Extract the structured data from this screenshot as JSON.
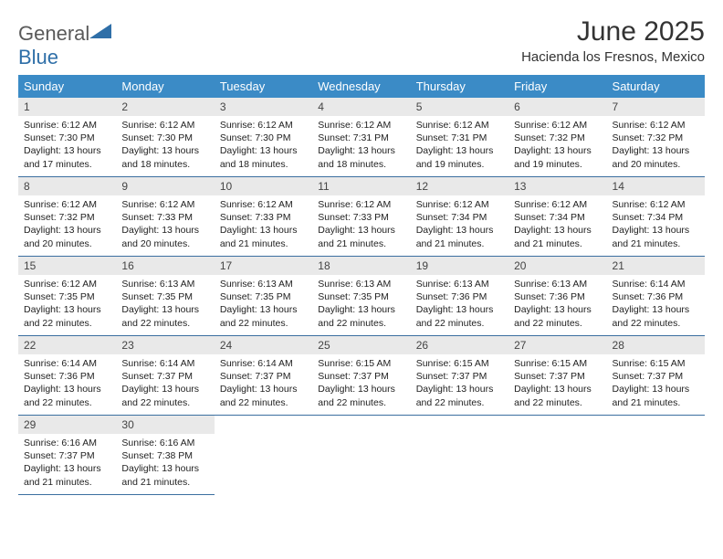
{
  "logo": {
    "word1": "General",
    "word2": "Blue",
    "triangle_color": "#2f6fa8"
  },
  "header": {
    "month_title": "June 2025",
    "location": "Hacienda los Fresnos, Mexico"
  },
  "colors": {
    "header_bg": "#3b8bc6",
    "header_text": "#ffffff",
    "daynum_bg": "#e9e9e9",
    "row_border": "#3b6fa0",
    "body_text": "#222222"
  },
  "day_labels": [
    "Sunday",
    "Monday",
    "Tuesday",
    "Wednesday",
    "Thursday",
    "Friday",
    "Saturday"
  ],
  "weeks": [
    [
      {
        "n": "1",
        "sr": "6:12 AM",
        "ss": "7:30 PM",
        "dl": "13 hours and 17 minutes."
      },
      {
        "n": "2",
        "sr": "6:12 AM",
        "ss": "7:30 PM",
        "dl": "13 hours and 18 minutes."
      },
      {
        "n": "3",
        "sr": "6:12 AM",
        "ss": "7:30 PM",
        "dl": "13 hours and 18 minutes."
      },
      {
        "n": "4",
        "sr": "6:12 AM",
        "ss": "7:31 PM",
        "dl": "13 hours and 18 minutes."
      },
      {
        "n": "5",
        "sr": "6:12 AM",
        "ss": "7:31 PM",
        "dl": "13 hours and 19 minutes."
      },
      {
        "n": "6",
        "sr": "6:12 AM",
        "ss": "7:32 PM",
        "dl": "13 hours and 19 minutes."
      },
      {
        "n": "7",
        "sr": "6:12 AM",
        "ss": "7:32 PM",
        "dl": "13 hours and 20 minutes."
      }
    ],
    [
      {
        "n": "8",
        "sr": "6:12 AM",
        "ss": "7:32 PM",
        "dl": "13 hours and 20 minutes."
      },
      {
        "n": "9",
        "sr": "6:12 AM",
        "ss": "7:33 PM",
        "dl": "13 hours and 20 minutes."
      },
      {
        "n": "10",
        "sr": "6:12 AM",
        "ss": "7:33 PM",
        "dl": "13 hours and 21 minutes."
      },
      {
        "n": "11",
        "sr": "6:12 AM",
        "ss": "7:33 PM",
        "dl": "13 hours and 21 minutes."
      },
      {
        "n": "12",
        "sr": "6:12 AM",
        "ss": "7:34 PM",
        "dl": "13 hours and 21 minutes."
      },
      {
        "n": "13",
        "sr": "6:12 AM",
        "ss": "7:34 PM",
        "dl": "13 hours and 21 minutes."
      },
      {
        "n": "14",
        "sr": "6:12 AM",
        "ss": "7:34 PM",
        "dl": "13 hours and 21 minutes."
      }
    ],
    [
      {
        "n": "15",
        "sr": "6:12 AM",
        "ss": "7:35 PM",
        "dl": "13 hours and 22 minutes."
      },
      {
        "n": "16",
        "sr": "6:13 AM",
        "ss": "7:35 PM",
        "dl": "13 hours and 22 minutes."
      },
      {
        "n": "17",
        "sr": "6:13 AM",
        "ss": "7:35 PM",
        "dl": "13 hours and 22 minutes."
      },
      {
        "n": "18",
        "sr": "6:13 AM",
        "ss": "7:35 PM",
        "dl": "13 hours and 22 minutes."
      },
      {
        "n": "19",
        "sr": "6:13 AM",
        "ss": "7:36 PM",
        "dl": "13 hours and 22 minutes."
      },
      {
        "n": "20",
        "sr": "6:13 AM",
        "ss": "7:36 PM",
        "dl": "13 hours and 22 minutes."
      },
      {
        "n": "21",
        "sr": "6:14 AM",
        "ss": "7:36 PM",
        "dl": "13 hours and 22 minutes."
      }
    ],
    [
      {
        "n": "22",
        "sr": "6:14 AM",
        "ss": "7:36 PM",
        "dl": "13 hours and 22 minutes."
      },
      {
        "n": "23",
        "sr": "6:14 AM",
        "ss": "7:37 PM",
        "dl": "13 hours and 22 minutes."
      },
      {
        "n": "24",
        "sr": "6:14 AM",
        "ss": "7:37 PM",
        "dl": "13 hours and 22 minutes."
      },
      {
        "n": "25",
        "sr": "6:15 AM",
        "ss": "7:37 PM",
        "dl": "13 hours and 22 minutes."
      },
      {
        "n": "26",
        "sr": "6:15 AM",
        "ss": "7:37 PM",
        "dl": "13 hours and 22 minutes."
      },
      {
        "n": "27",
        "sr": "6:15 AM",
        "ss": "7:37 PM",
        "dl": "13 hours and 22 minutes."
      },
      {
        "n": "28",
        "sr": "6:15 AM",
        "ss": "7:37 PM",
        "dl": "13 hours and 21 minutes."
      }
    ],
    [
      {
        "n": "29",
        "sr": "6:16 AM",
        "ss": "7:37 PM",
        "dl": "13 hours and 21 minutes."
      },
      {
        "n": "30",
        "sr": "6:16 AM",
        "ss": "7:38 PM",
        "dl": "13 hours and 21 minutes."
      },
      null,
      null,
      null,
      null,
      null
    ]
  ],
  "labels": {
    "sunrise": "Sunrise:",
    "sunset": "Sunset:",
    "daylight": "Daylight:"
  }
}
